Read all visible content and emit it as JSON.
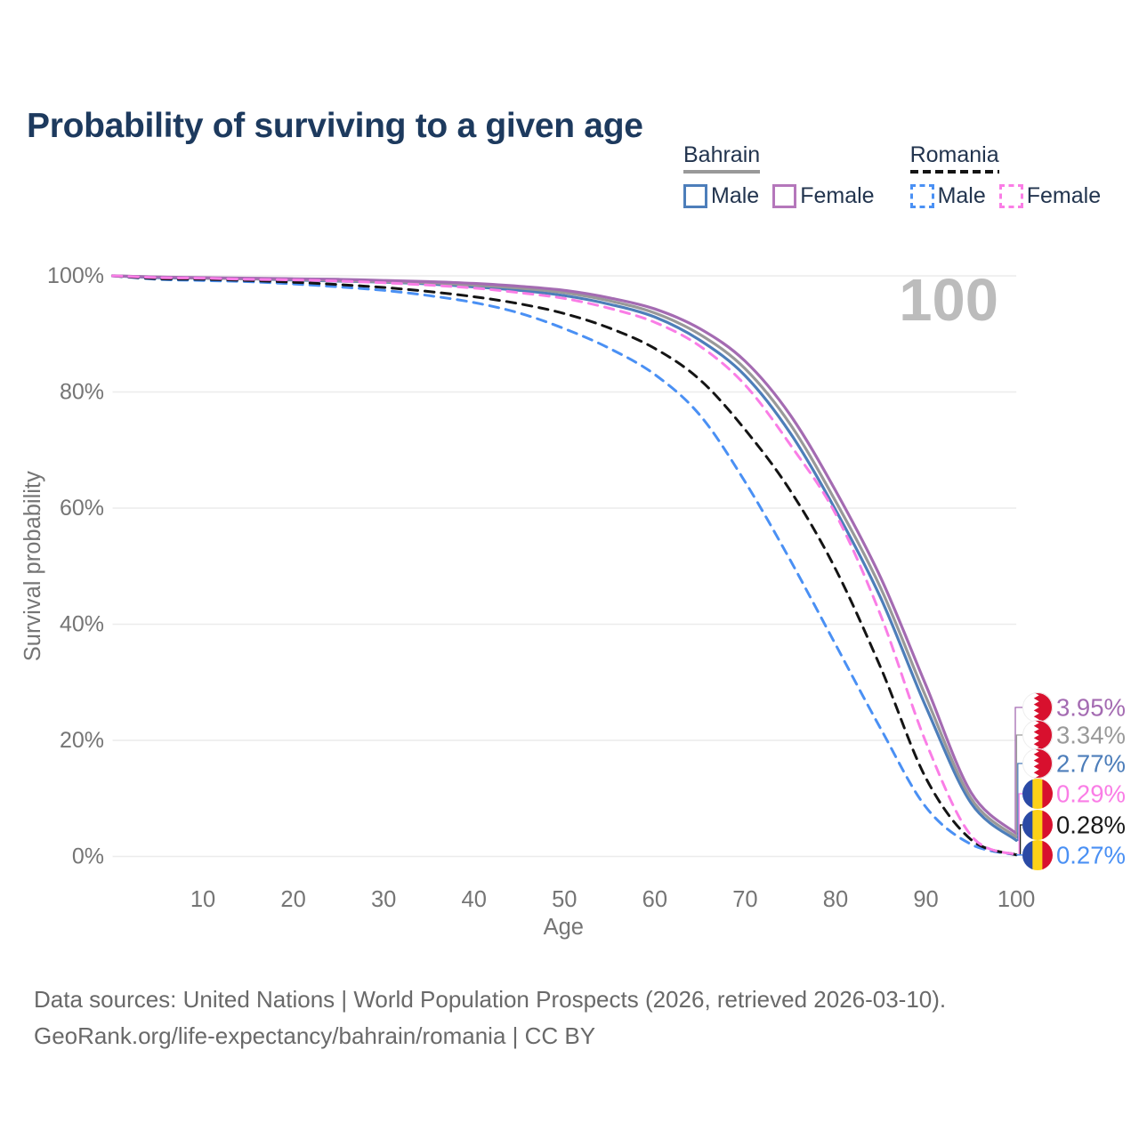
{
  "title": "Probability of surviving to a given age",
  "colors": {
    "title_text": "#1d3a5e",
    "legend_text": "#22344e",
    "axis_text": "#757575",
    "gridline": "#ececec",
    "watermark": "#bcbcbc",
    "footer_text": "#696969",
    "bahrain_male": "#4d7eba",
    "bahrain_total": "#999999",
    "bahrain_female": "#a46bb2",
    "romania_male": "#4a90f4",
    "romania_total": "#141414",
    "romania_female": "#fa7de6",
    "flag_red": "#d8102e",
    "flag_blue": "#2a4aa5",
    "flag_yellow": "#fcd117"
  },
  "legend": {
    "groups": [
      {
        "name": "Bahrain",
        "line_style": "solid",
        "line_color": "#999999",
        "items": [
          {
            "label": "Male",
            "box_color": "#4d7eba",
            "box_style": "solid"
          },
          {
            "label": "Female",
            "box_color": "#b577bb",
            "box_style": "solid"
          }
        ]
      },
      {
        "name": "Romania",
        "line_style": "dashed",
        "line_color": "#141414",
        "items": [
          {
            "label": "Male",
            "box_color": "#4a90f4",
            "box_style": "dashed"
          },
          {
            "label": "Female",
            "box_color": "#fa7de6",
            "box_style": "dashed"
          }
        ]
      }
    ]
  },
  "chart_data": {
    "type": "line",
    "title": "Probability of surviving to a given age",
    "xlabel": "Age",
    "ylabel": "Survival probability",
    "xlim": [
      0,
      100
    ],
    "ylim": [
      0,
      100
    ],
    "grid": "horizontal-only",
    "age_counter": "100",
    "x_ticks": [
      10,
      20,
      30,
      40,
      50,
      60,
      70,
      80,
      90,
      100
    ],
    "y_ticks": [
      {
        "value": 0,
        "label": "0%"
      },
      {
        "value": 20,
        "label": "20%"
      },
      {
        "value": 40,
        "label": "40%"
      },
      {
        "value": 60,
        "label": "60%"
      },
      {
        "value": 80,
        "label": "80%"
      },
      {
        "value": 100,
        "label": "100%"
      }
    ],
    "x": [
      0,
      5,
      10,
      15,
      20,
      25,
      30,
      35,
      40,
      45,
      50,
      55,
      60,
      65,
      70,
      75,
      80,
      85,
      90,
      95,
      100
    ],
    "series": [
      {
        "id": "bahrain-male",
        "country": "Bahrain",
        "sex": "Male",
        "color": "#4d7eba",
        "dashed": false,
        "end_label": "2.77%",
        "values": [
          100,
          99.7,
          99.6,
          99.5,
          99.3,
          99.1,
          98.9,
          98.6,
          98.1,
          97.5,
          96.6,
          95.1,
          92.9,
          88.9,
          82.8,
          72.9,
          59.7,
          44.5,
          25.8,
          9.2,
          2.77
        ]
      },
      {
        "id": "bahrain-total",
        "country": "Bahrain",
        "sex": "Both sexes",
        "color": "#999999",
        "dashed": false,
        "end_label": "3.34%",
        "values": [
          100,
          99.8,
          99.6,
          99.5,
          99.4,
          99.2,
          99.0,
          98.8,
          98.4,
          97.9,
          97.1,
          95.7,
          93.6,
          89.9,
          84.0,
          74.4,
          61.2,
          46.2,
          27.5,
          10.0,
          3.34
        ]
      },
      {
        "id": "bahrain-female",
        "country": "Bahrain",
        "sex": "Female",
        "color": "#a46bb2",
        "dashed": false,
        "end_label": "3.95%",
        "values": [
          100,
          99.8,
          99.7,
          99.6,
          99.5,
          99.4,
          99.2,
          99.0,
          98.7,
          98.2,
          97.5,
          96.2,
          94.3,
          90.9,
          85.3,
          76.0,
          63.0,
          48.0,
          29.5,
          11.0,
          3.95
        ]
      },
      {
        "id": "romania-male",
        "country": "Romania",
        "sex": "Male",
        "color": "#4a90f4",
        "dashed": true,
        "end_label": "0.27%",
        "values": [
          100,
          99.4,
          99.2,
          99.0,
          98.6,
          98.1,
          97.5,
          96.6,
          95.4,
          93.6,
          90.9,
          87.5,
          83.0,
          76.0,
          64.5,
          51.0,
          36.5,
          22.0,
          8.5,
          2.1,
          0.27
        ]
      },
      {
        "id": "romania-total",
        "country": "Romania",
        "sex": "Both sexes",
        "color": "#141414",
        "dashed": true,
        "end_label": "0.28%",
        "values": [
          100,
          99.5,
          99.4,
          99.2,
          98.9,
          98.5,
          98.0,
          97.3,
          96.4,
          95.2,
          93.5,
          91.0,
          87.5,
          82.1,
          73.5,
          63.0,
          49.5,
          32.5,
          13.5,
          2.9,
          0.28
        ]
      },
      {
        "id": "romania-female",
        "country": "Romania",
        "sex": "Female",
        "color": "#fa7de6",
        "dashed": true,
        "end_label": "0.29%",
        "values": [
          100,
          99.7,
          99.6,
          99.4,
          99.3,
          99.1,
          98.8,
          98.4,
          97.9,
          97.1,
          96.1,
          94.4,
          92.0,
          87.9,
          81.2,
          70.9,
          59.0,
          41.5,
          19.7,
          3.6,
          0.29
        ]
      }
    ],
    "end_labels": [
      {
        "text": "3.95%",
        "series": "bahrain-female",
        "flag": "bahrain",
        "color": "#a46bb2"
      },
      {
        "text": "3.34%",
        "series": "bahrain-total",
        "flag": "bahrain",
        "color": "#9a9a9a"
      },
      {
        "text": "2.77%",
        "series": "bahrain-male",
        "flag": "bahrain",
        "color": "#4d7eba"
      },
      {
        "text": "0.29%",
        "series": "romania-female",
        "flag": "romania",
        "color": "#fa7de6"
      },
      {
        "text": "0.28%",
        "series": "romania-total",
        "flag": "romania",
        "color": "#1a1a1a"
      },
      {
        "text": "0.27%",
        "series": "romania-male",
        "flag": "romania",
        "color": "#4a90f4"
      }
    ]
  },
  "footer": {
    "line1": "Data sources: United Nations | World Population Prospects (2026, retrieved 2026-03-10).",
    "line2": "GeoRank.org/life-expectancy/bahrain/romania | CC BY"
  }
}
